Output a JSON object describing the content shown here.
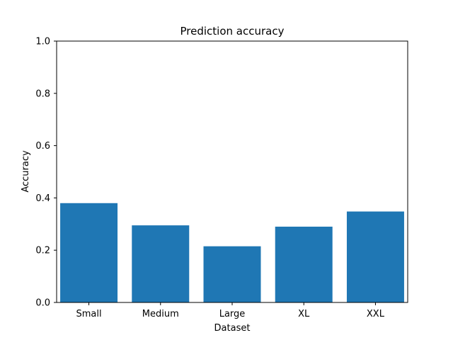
{
  "chart_data": {
    "type": "bar",
    "title": "Prediction accuracy",
    "xlabel": "Dataset",
    "ylabel": "Accuracy",
    "categories": [
      "Small",
      "Medium",
      "Large",
      "XL",
      "XXL"
    ],
    "values": [
      0.38,
      0.295,
      0.215,
      0.29,
      0.348
    ],
    "ylim": [
      0,
      1.0
    ],
    "yticks": [
      "0.0",
      "0.2",
      "0.4",
      "0.6",
      "0.8",
      "1.0"
    ],
    "grid": false,
    "bar_color": "#1f77b4"
  }
}
